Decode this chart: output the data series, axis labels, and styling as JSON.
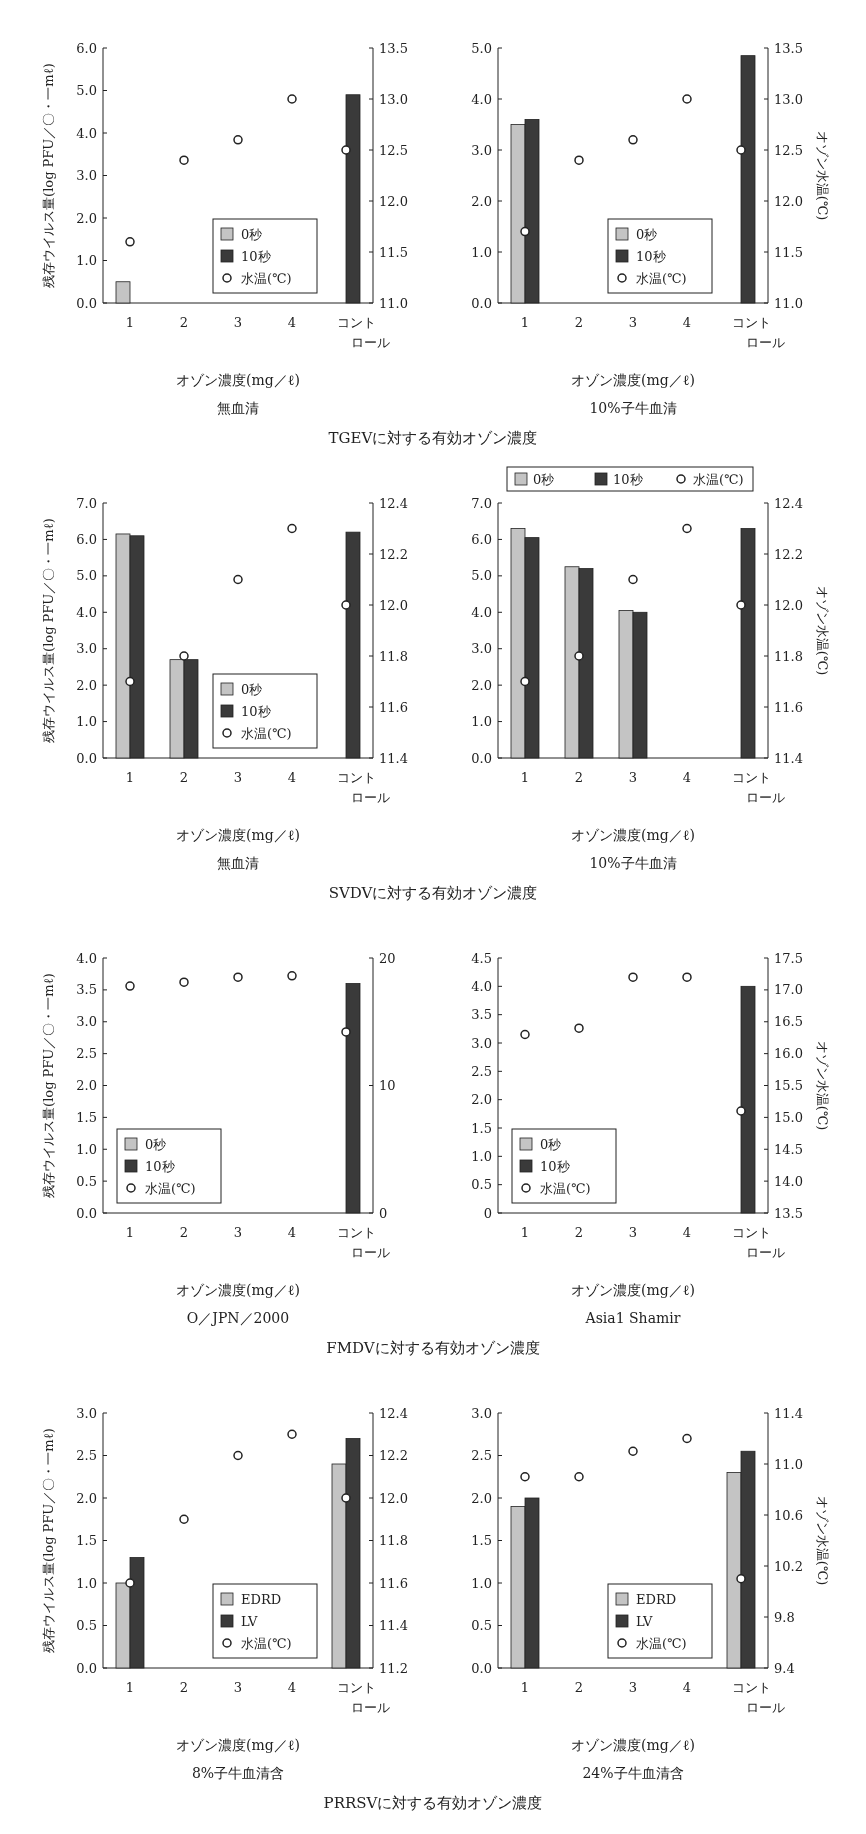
{
  "chart_data": [
    {
      "type": "bar",
      "categories": [
        "1",
        "2",
        "3",
        "4",
        "コントロール"
      ],
      "xlabel": "オゾン濃度(mg／ℓ)",
      "subtitle": "無血清",
      "ylabel": "残存ウイルス量(log PFU／〇・一mℓ)",
      "annotations": [
        "TGEVに対する有効オゾン濃度"
      ],
      "legend": "bottom",
      "marker": "circle",
      "ylim": [
        0,
        6
      ],
      "yticks": [
        {
          "value": 0,
          "label": "0.0"
        },
        {
          "value": 1,
          "label": "1.0"
        },
        {
          "value": 2,
          "label": "2.0"
        },
        {
          "value": 3,
          "label": "3.0"
        },
        {
          "value": 4,
          "label": "4.0"
        },
        {
          "value": 5,
          "label": "5.0"
        },
        {
          "value": 6,
          "label": "6.0"
        }
      ],
      "y2lim": [
        11,
        13.5
      ],
      "y2ticks": [
        {
          "value": 11,
          "label": "11.0"
        },
        11.5,
        {
          "value": 12,
          "label": "12.0"
        },
        12.5,
        {
          "value": 13,
          "label": "13.0"
        },
        13.5
      ],
      "series": [
        {
          "name": "0秒",
          "color": "#c4c4c4",
          "values": [
            0.5,
            null,
            null,
            null,
            null
          ]
        },
        {
          "name": "10秒",
          "color": "#3a3a3a",
          "values": [
            null,
            null,
            null,
            null,
            4.9
          ]
        },
        {
          "name": "水温(℃)",
          "type": "scatter",
          "axis": "y2",
          "color": "#222222",
          "values": [
            11.6,
            12.4,
            12.6,
            13.0,
            12.5
          ]
        }
      ]
    },
    {
      "type": "bar",
      "categories": [
        "1",
        "2",
        "3",
        "4",
        "コントロール"
      ],
      "xlabel": "オゾン濃度(mg／ℓ)",
      "subtitle": "10%子牛血清",
      "y2label": "オゾン水温(℃)",
      "legend": "bottom",
      "marker": "circle",
      "ylim": [
        0,
        5
      ],
      "yticks": [
        {
          "value": 0,
          "label": "0.0"
        },
        {
          "value": 1,
          "label": "1.0"
        },
        {
          "value": 2,
          "label": "2.0"
        },
        {
          "value": 3,
          "label": "3.0"
        },
        {
          "value": 4,
          "label": "4.0"
        },
        {
          "value": 5,
          "label": "5.0"
        }
      ],
      "y2lim": [
        11,
        13.5
      ],
      "y2ticks": [
        {
          "value": 11,
          "label": "11.0"
        },
        11.5,
        {
          "value": 12,
          "label": "12.0"
        },
        12.5,
        {
          "value": 13,
          "label": "13.0"
        },
        13.5
      ],
      "series": [
        {
          "name": "0秒",
          "color": "#c4c4c4",
          "values": [
            3.5,
            null,
            null,
            null,
            null
          ]
        },
        {
          "name": "10秒",
          "color": "#3a3a3a",
          "values": [
            3.6,
            null,
            null,
            null,
            4.85
          ]
        },
        {
          "name": "水温(℃)",
          "type": "scatter",
          "axis": "y2",
          "color": "#222222",
          "values": [
            11.7,
            12.4,
            12.6,
            13.0,
            12.5
          ]
        }
      ]
    },
    {
      "type": "bar",
      "categories": [
        "1",
        "2",
        "3",
        "4",
        "コントロール"
      ],
      "xlabel": "オゾン濃度(mg／ℓ)",
      "subtitle": "無血清",
      "ylabel": "残存ウイルス量(log PFU／〇・一mℓ)",
      "annotations": [
        "SVDVに対する有効オゾン濃度"
      ],
      "legend": "bottom",
      "marker": "circle",
      "ylim": [
        0,
        7
      ],
      "yticks": [
        {
          "value": 0,
          "label": "0.0"
        },
        {
          "value": 1,
          "label": "1.0"
        },
        {
          "value": 2,
          "label": "2.0"
        },
        {
          "value": 3,
          "label": "3.0"
        },
        {
          "value": 4,
          "label": "4.0"
        },
        {
          "value": 5,
          "label": "5.0"
        },
        {
          "value": 6,
          "label": "6.0"
        },
        {
          "value": 7,
          "label": "7.0"
        }
      ],
      "y2lim": [
        11.4,
        12.4
      ],
      "y2ticks": [
        11.4,
        11.6,
        11.8,
        {
          "value": 12,
          "label": "12.0"
        },
        12.2,
        12.4
      ],
      "series": [
        {
          "name": "0秒",
          "color": "#c4c4c4",
          "values": [
            6.15,
            2.7,
            null,
            null,
            null
          ]
        },
        {
          "name": "10秒",
          "color": "#3a3a3a",
          "values": [
            6.1,
            2.7,
            null,
            null,
            6.2
          ]
        },
        {
          "name": "水温(℃)",
          "type": "scatter",
          "axis": "y2",
          "color": "#222222",
          "values": [
            11.7,
            11.8,
            12.1,
            12.3,
            12.0
          ]
        }
      ]
    },
    {
      "type": "bar",
      "categories": [
        "1",
        "2",
        "3",
        "4",
        "コントロール"
      ],
      "xlabel": "オゾン濃度(mg／ℓ)",
      "subtitle": "10%子牛血清",
      "y2label": "オゾン水温(℃)",
      "legend": "top",
      "marker": "circle",
      "ylim": [
        0,
        7
      ],
      "yticks": [
        {
          "value": 0,
          "label": "0.0"
        },
        {
          "value": 1,
          "label": "1.0"
        },
        {
          "value": 2,
          "label": "2.0"
        },
        {
          "value": 3,
          "label": "3.0"
        },
        {
          "value": 4,
          "label": "4.0"
        },
        {
          "value": 5,
          "label": "5.0"
        },
        {
          "value": 6,
          "label": "6.0"
        },
        {
          "value": 7,
          "label": "7.0"
        }
      ],
      "y2lim": [
        11.4,
        12.4
      ],
      "y2ticks": [
        11.4,
        11.6,
        11.8,
        {
          "value": 12,
          "label": "12.0"
        },
        12.2,
        12.4
      ],
      "series": [
        {
          "name": "0秒",
          "color": "#c4c4c4",
          "values": [
            6.3,
            5.25,
            4.05,
            null,
            null
          ]
        },
        {
          "name": "10秒",
          "color": "#3a3a3a",
          "values": [
            6.05,
            5.2,
            4.0,
            null,
            6.3
          ]
        },
        {
          "name": "水温(℃)",
          "type": "scatter",
          "axis": "y2",
          "color": "#222222",
          "values": [
            11.7,
            11.8,
            12.1,
            12.3,
            12.0
          ]
        }
      ]
    },
    {
      "type": "bar",
      "categories": [
        "1",
        "2",
        "3",
        "4",
        "コントロール"
      ],
      "xlabel": "オゾン濃度(mg／ℓ)",
      "subtitle": "O／JPN／2000",
      "ylabel": "残存ウイルス量(log PFU／〇・一mℓ)",
      "annotations": [
        "FMDVに対する有効オゾン濃度"
      ],
      "legend": "bottom left",
      "marker": "circle",
      "ylim": [
        0,
        4
      ],
      "yticks": [
        {
          "value": 0,
          "label": "0.0"
        },
        0.5,
        {
          "value": 1,
          "label": "1.0"
        },
        1.5,
        {
          "value": 2,
          "label": "2.0"
        },
        2.5,
        {
          "value": 3,
          "label": "3.0"
        },
        3.5,
        {
          "value": 4,
          "label": "4.0"
        }
      ],
      "y2lim": [
        0,
        20
      ],
      "y2ticks": [
        0,
        10,
        20
      ],
      "series": [
        {
          "name": "0秒",
          "color": "#c4c4c4",
          "values": [
            null,
            null,
            null,
            null,
            null
          ]
        },
        {
          "name": "10秒",
          "color": "#3a3a3a",
          "values": [
            null,
            null,
            null,
            null,
            3.6
          ]
        },
        {
          "name": "水温(℃)",
          "type": "scatter",
          "axis": "y2",
          "color": "#222222",
          "values": [
            17.8,
            18.1,
            18.5,
            18.6,
            14.2
          ]
        }
      ]
    },
    {
      "type": "bar",
      "categories": [
        "1",
        "2",
        "3",
        "4",
        "コントロール"
      ],
      "xlabel": "オゾン濃度(mg／ℓ)",
      "subtitle": "Asia1 Shamir",
      "y2label": "オゾン水温(℃)",
      "legend": "bottom left",
      "marker": "circle",
      "ylim": [
        0,
        4.5
      ],
      "yticks": [
        0,
        0.5,
        {
          "value": 1,
          "label": "1.0"
        },
        1.5,
        {
          "value": 2,
          "label": "2.0"
        },
        2.5,
        {
          "value": 3,
          "label": "3.0"
        },
        3.5,
        {
          "value": 4,
          "label": "4.0"
        },
        4.5
      ],
      "y2lim": [
        13.5,
        17.5
      ],
      "y2ticks": [
        13.5,
        {
          "value": 14,
          "label": "14.0"
        },
        14.5,
        {
          "value": 15,
          "label": "15.0"
        },
        15.5,
        {
          "value": 16,
          "label": "16.0"
        },
        16.5,
        {
          "value": 17,
          "label": "17.0"
        },
        17.5
      ],
      "series": [
        {
          "name": "0秒",
          "color": "#c4c4c4",
          "values": [
            null,
            null,
            null,
            null,
            null
          ]
        },
        {
          "name": "10秒",
          "color": "#3a3a3a",
          "values": [
            null,
            null,
            null,
            null,
            4.0
          ]
        },
        {
          "name": "水温(℃)",
          "type": "scatter",
          "axis": "y2",
          "color": "#222222",
          "values": [
            16.3,
            16.4,
            17.2,
            17.2,
            15.1
          ]
        }
      ]
    },
    {
      "type": "bar",
      "categories": [
        "1",
        "2",
        "3",
        "4",
        "コントロール"
      ],
      "xlabel": "オゾン濃度(mg／ℓ)",
      "subtitle": "8%子牛血清含",
      "ylabel": "残存ウイルス量(log PFU／〇・一mℓ)",
      "annotations": [
        "PRRSVに対する有効オゾン濃度"
      ],
      "legend": "bottom",
      "marker": "circle",
      "ylim": [
        0,
        3
      ],
      "yticks": [
        {
          "value": 0,
          "label": "0.0"
        },
        0.5,
        {
          "value": 1,
          "label": "1.0"
        },
        1.5,
        {
          "value": 2,
          "label": "2.0"
        },
        2.5,
        {
          "value": 3,
          "label": "3.0"
        }
      ],
      "y2lim": [
        11.2,
        12.4
      ],
      "y2ticks": [
        11.2,
        11.4,
        11.6,
        11.8,
        {
          "value": 12,
          "label": "12.0"
        },
        12.2,
        12.4
      ],
      "series": [
        {
          "name": "EDRD",
          "color": "#c4c4c4",
          "values": [
            1.0,
            null,
            null,
            null,
            2.4
          ]
        },
        {
          "name": "LV",
          "color": "#3a3a3a",
          "values": [
            1.3,
            null,
            null,
            null,
            2.7
          ]
        },
        {
          "name": "水温(℃)",
          "type": "scatter",
          "axis": "y2",
          "color": "#222222",
          "values": [
            11.6,
            11.9,
            12.2,
            12.3,
            12.0
          ]
        }
      ]
    },
    {
      "type": "bar",
      "categories": [
        "1",
        "2",
        "3",
        "4",
        "コントロール"
      ],
      "xlabel": "オゾン濃度(mg／ℓ)",
      "subtitle": "24%子牛血清含",
      "y2label": "オゾン水温(℃)",
      "legend": "bottom",
      "marker": "circle",
      "ylim": [
        0,
        3
      ],
      "yticks": [
        {
          "value": 0,
          "label": "0.0"
        },
        0.5,
        {
          "value": 1,
          "label": "1.0"
        },
        1.5,
        {
          "value": 2,
          "label": "2.0"
        },
        2.5,
        {
          "value": 3,
          "label": "3.0"
        }
      ],
      "y2lim": [
        9.4,
        11.4
      ],
      "y2ticks": [
        9.4,
        9.8,
        10.2,
        10.6,
        {
          "value": 11,
          "label": "11.0"
        },
        11.4
      ],
      "series": [
        {
          "name": "EDRD",
          "color": "#c4c4c4",
          "values": [
            1.9,
            null,
            null,
            null,
            2.3
          ]
        },
        {
          "name": "LV",
          "color": "#3a3a3a",
          "values": [
            2.0,
            null,
            null,
            null,
            2.55
          ]
        },
        {
          "name": "水温(℃)",
          "type": "scatter",
          "axis": "y2",
          "color": "#222222",
          "values": [
            10.9,
            10.9,
            11.1,
            11.2,
            10.1
          ]
        }
      ]
    }
  ]
}
